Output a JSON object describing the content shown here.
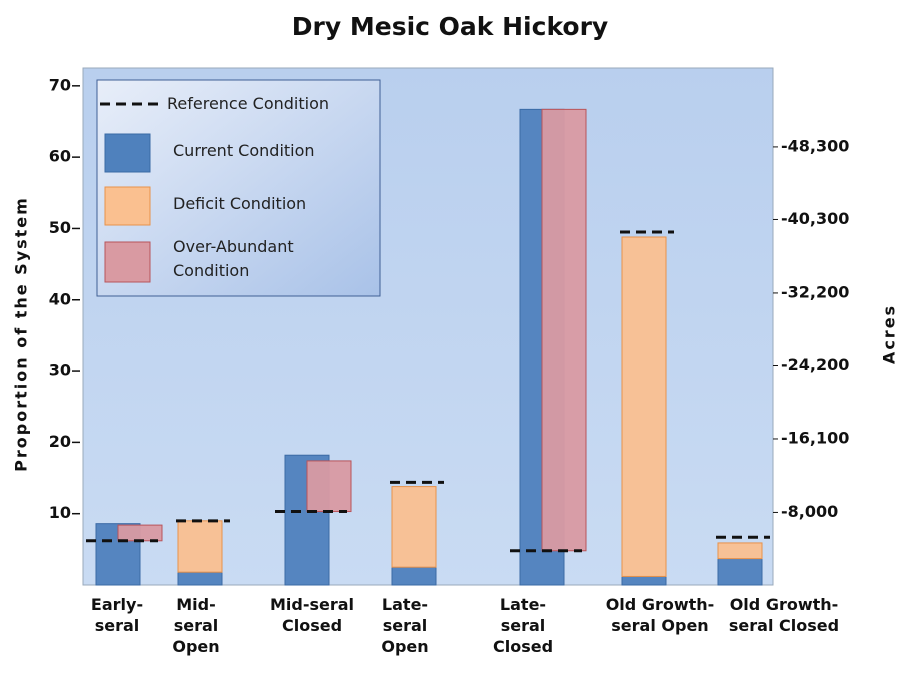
{
  "chart_data": {
    "type": "bar",
    "title": "Dry Mesic Oak Hickory",
    "y_label": "Proportion of the System",
    "y2_label": "Acres",
    "categories": [
      "Early-seral",
      "Mid-seral Open",
      "Mid-seral Closed",
      "Late-seral Open",
      "Late-seral Closed",
      "Old Growth-seral Open",
      "Old Growth-seral Closed"
    ],
    "series": [
      {
        "name": "Reference Condition",
        "color": "#111111",
        "values": [
          6.2,
          9.0,
          10.3,
          14.4,
          4.8,
          49.5,
          6.7
        ]
      },
      {
        "name": "Current Condition",
        "color": "#4f81bd",
        "values": [
          8.6,
          1.8,
          18.2,
          2.5,
          66.7,
          1.2,
          3.7
        ]
      },
      {
        "name": "Deficit Condition",
        "color": "#fac090",
        "values": [
          null,
          7.2,
          null,
          11.3,
          null,
          47.6,
          2.2
        ]
      },
      {
        "name": "Over-Abundant Condition",
        "color": "#d99aa2",
        "values": [
          2.2,
          null,
          7.1,
          null,
          61.9,
          null,
          null
        ]
      }
    ],
    "ylim": [
      0,
      72.5
    ],
    "yticks": [
      10,
      20,
      30,
      40,
      50,
      60,
      70
    ],
    "y2lim": [
      0,
      -57000
    ],
    "y2ticks": [
      {
        "value": -8000,
        "label": "-8,000"
      },
      {
        "value": -16100,
        "label": "-16,100"
      },
      {
        "value": -24200,
        "label": "-24,200"
      },
      {
        "value": -32200,
        "label": "-32,200"
      },
      {
        "value": -40300,
        "label": "-40,300"
      },
      {
        "value": -48300,
        "label": "-48,300"
      }
    ],
    "legend": "upper left"
  }
}
